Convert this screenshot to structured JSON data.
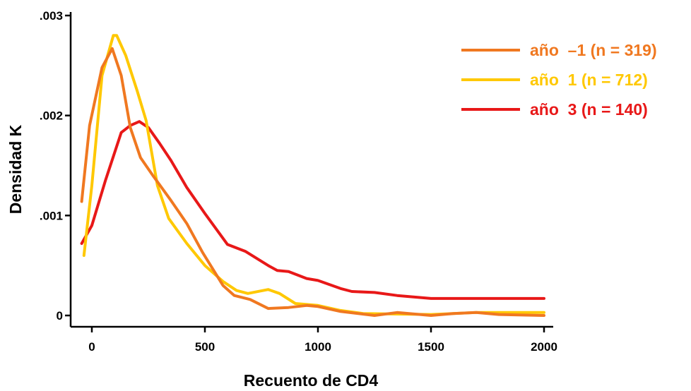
{
  "chart_data": {
    "type": "line",
    "title": "",
    "xlabel": "Recuento de CD4",
    "ylabel": "Densidad K",
    "xlim": [
      -60,
      2040
    ],
    "ylim": [
      -0.0001,
      0.0031
    ],
    "x_ticks": [
      {
        "value": 0,
        "label": "0"
      },
      {
        "value": 500,
        "label": "500"
      },
      {
        "value": 1000,
        "label": "1000"
      },
      {
        "value": 1500,
        "label": "1500"
      },
      {
        "value": 2000,
        "label": "2000"
      }
    ],
    "y_ticks": [
      {
        "value": 0,
        "label": "0"
      },
      {
        "value": 0.001,
        "label": ".001"
      },
      {
        "value": 0.002,
        "label": ".002"
      },
      {
        "value": 0.003,
        "label": ".003"
      }
    ],
    "grid": false,
    "legend_position": "top-right",
    "series": [
      {
        "name": "año  –1 (n = 319)",
        "color": "#F07820",
        "x": [
          -45,
          -10,
          45,
          90,
          130,
          170,
          215,
          270,
          350,
          420,
          490,
          580,
          630,
          700,
          780,
          870,
          950,
          1000,
          1100,
          1250,
          1350,
          1500,
          1600,
          1700,
          1800,
          2000
        ],
        "y": [
          0.00114,
          0.0019,
          0.00248,
          0.00267,
          0.0024,
          0.00188,
          0.00158,
          0.0014,
          0.00115,
          0.00092,
          0.00063,
          0.0003,
          0.0002,
          0.00016,
          7e-05,
          8e-05,
          0.0001,
          9e-05,
          4e-05,
          0.0,
          3e-05,
          0.0,
          2e-05,
          3e-05,
          1e-05,
          0.0
        ]
      },
      {
        "name": "año  1 (n = 712)",
        "color": "#FFC800",
        "x": [
          -35,
          0,
          45,
          95,
          110,
          150,
          200,
          240,
          290,
          340,
          420,
          500,
          580,
          640,
          690,
          780,
          830,
          900,
          1000,
          1100,
          1200,
          1500,
          1700,
          2000
        ],
        "y": [
          0.0006,
          0.0013,
          0.0024,
          0.0028,
          0.0028,
          0.0026,
          0.00225,
          0.00195,
          0.0013,
          0.00097,
          0.00072,
          0.0005,
          0.00034,
          0.00025,
          0.00022,
          0.00026,
          0.00022,
          0.00012,
          0.0001,
          5e-05,
          2e-05,
          1e-05,
          3e-05,
          3e-05
        ]
      },
      {
        "name": "año  3 (n = 140)",
        "color": "#E81818",
        "x": [
          -45,
          0,
          60,
          130,
          170,
          210,
          250,
          300,
          350,
          420,
          500,
          600,
          680,
          780,
          820,
          870,
          950,
          1000,
          1100,
          1150,
          1250,
          1350,
          1500,
          1700,
          2000
        ],
        "y": [
          0.00072,
          0.0009,
          0.00135,
          0.00183,
          0.0019,
          0.00194,
          0.00188,
          0.00172,
          0.00155,
          0.00128,
          0.00102,
          0.00071,
          0.00064,
          0.0005,
          0.00045,
          0.00044,
          0.00037,
          0.00035,
          0.00027,
          0.00024,
          0.00023,
          0.0002,
          0.00017,
          0.00017,
          0.00017
        ]
      }
    ]
  }
}
